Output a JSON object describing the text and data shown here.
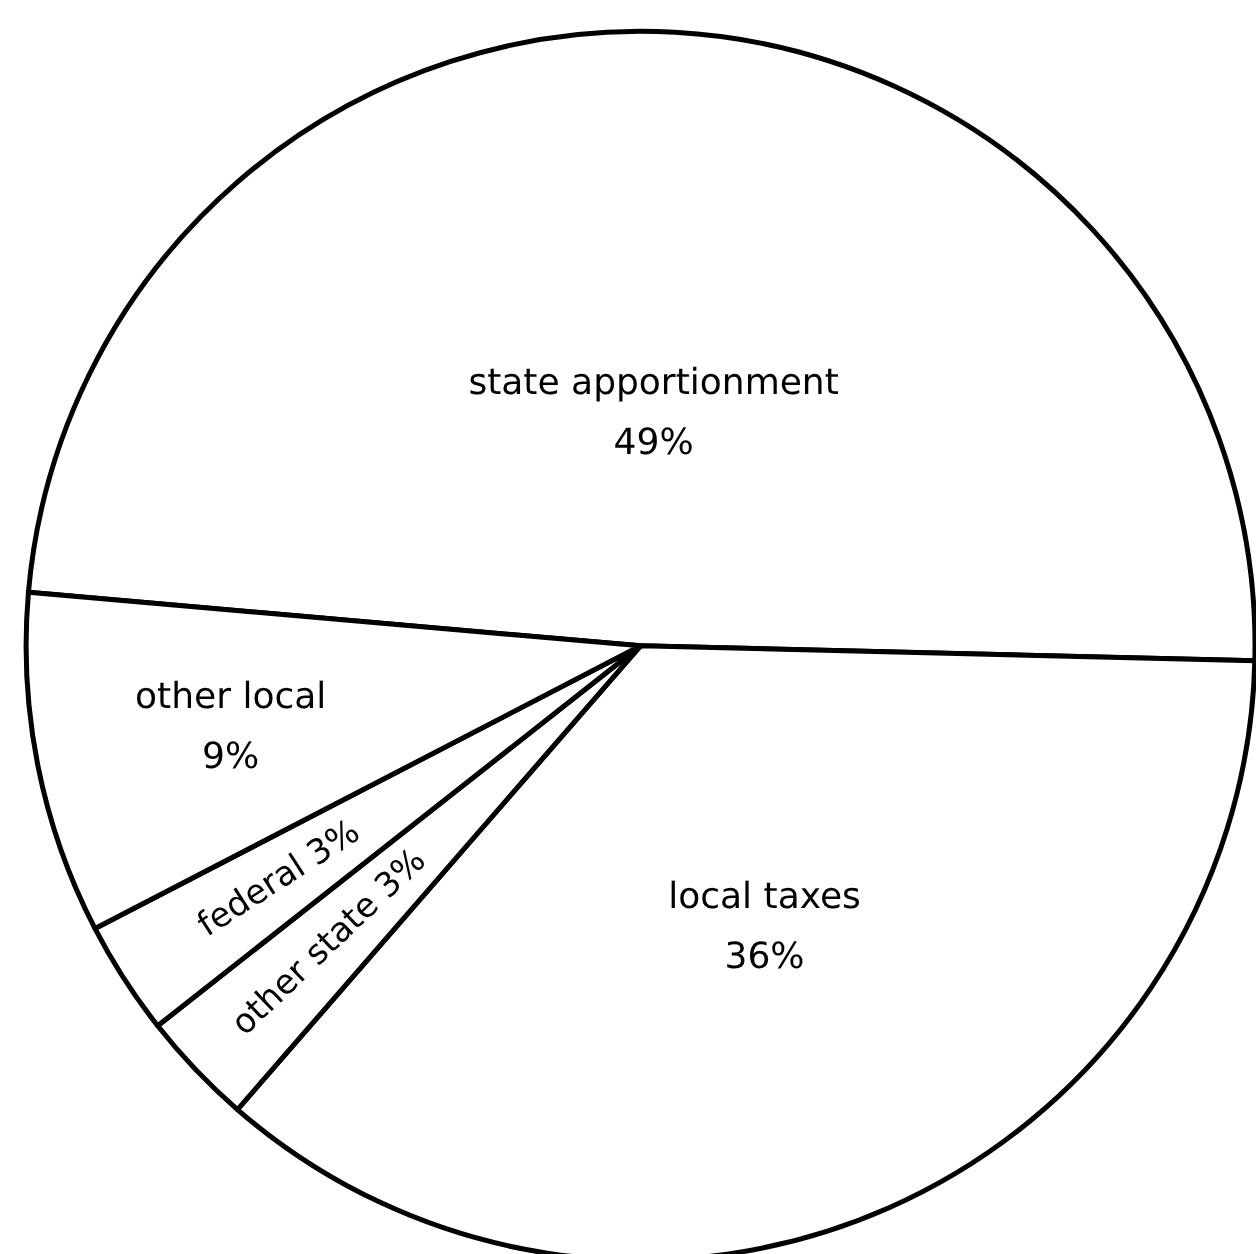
{
  "chart_data": {
    "type": "pie",
    "categories": [
      "state apportionment",
      "local taxes",
      "other state",
      "federal",
      "other local"
    ],
    "values": [
      49,
      36,
      3,
      3,
      9
    ],
    "value_labels": [
      "49%",
      "36%",
      "3%",
      "3%",
      "9%"
    ],
    "colors": [
      "#ffffff",
      "#ffffff",
      "#ffffff",
      "#ffffff",
      "#ffffff"
    ]
  }
}
